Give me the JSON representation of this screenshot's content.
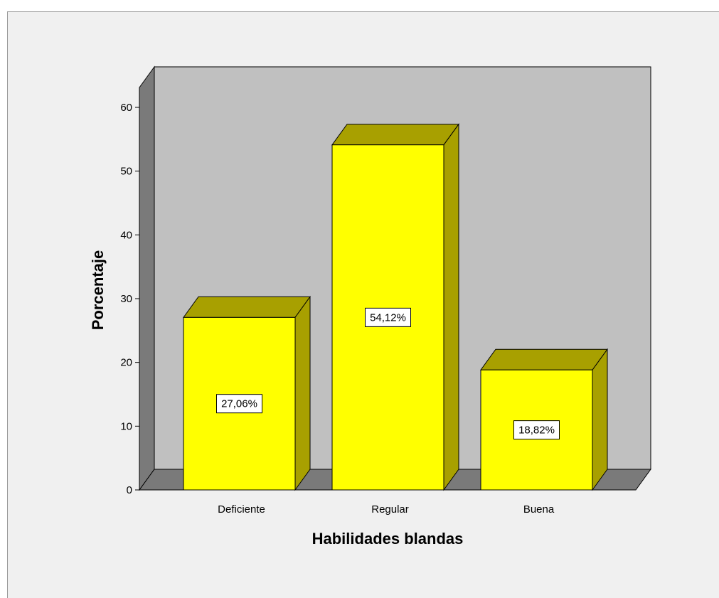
{
  "chart_data": {
    "type": "bar",
    "style": "3d",
    "categories": [
      "Deficiente",
      "Regular",
      "Buena"
    ],
    "values": [
      27.06,
      54.12,
      18.82
    ],
    "data_labels": [
      "27,06%",
      "54,12%",
      "18,82%"
    ],
    "xlabel": "Habilidades blandas",
    "ylabel": "Porcentaje",
    "ylim": [
      0,
      60
    ],
    "yticks": [
      0,
      10,
      20,
      30,
      40,
      50,
      60
    ],
    "grid": false,
    "legend": "none",
    "colors": {
      "bar_face": "#ffff00",
      "bar_top": "#a8a000",
      "bar_side": "#a8a000",
      "back_wall": "#c0c0c0",
      "side_wall": "#7a7a7a",
      "floor": "#7a7a7a",
      "background": "#f0f0f0"
    }
  }
}
